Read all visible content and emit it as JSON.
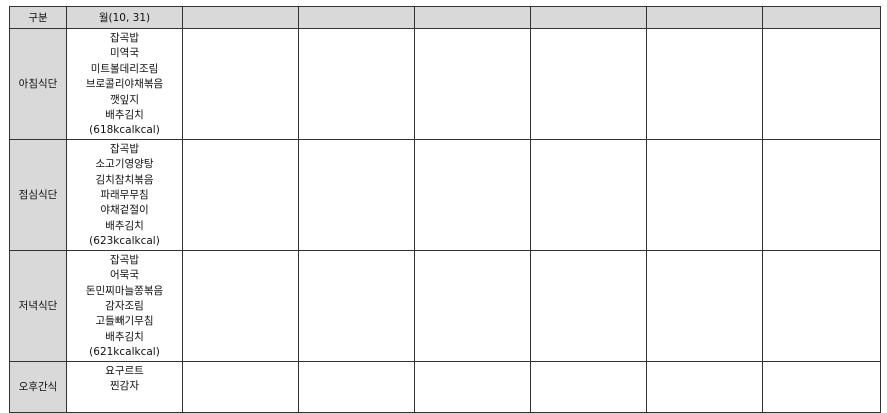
{
  "header": {
    "category": "구분",
    "days": [
      "월(10, 31)",
      "",
      "",
      "",
      "",
      "",
      ""
    ]
  },
  "rows": [
    {
      "label": "아침식단",
      "items": [
        "잡곡밥",
        "미역국",
        "미트볼데리조림",
        "브로콜리야채볶음",
        "깻잎지",
        "배추김치",
        "(618kcalkcal)"
      ]
    },
    {
      "label": "점심식단",
      "items": [
        "잡곡밥",
        "소고기영양탕",
        "김치참치볶음",
        "파래무무침",
        "야채겉절이",
        "배추김치",
        "(623kcalkcal)"
      ]
    },
    {
      "label": "저녁식단",
      "items": [
        "잡곡밥",
        "어묵국",
        "돈민찌마늘쫑볶음",
        "감자조림",
        "고들빼기무침",
        "배추김치",
        "(621kcalkcal)"
      ]
    },
    {
      "label": "오후간식",
      "items": [
        "요구르트",
        "찐감자"
      ]
    }
  ],
  "colors": {
    "header_bg": "#d9d9d9",
    "border": "#333333"
  }
}
